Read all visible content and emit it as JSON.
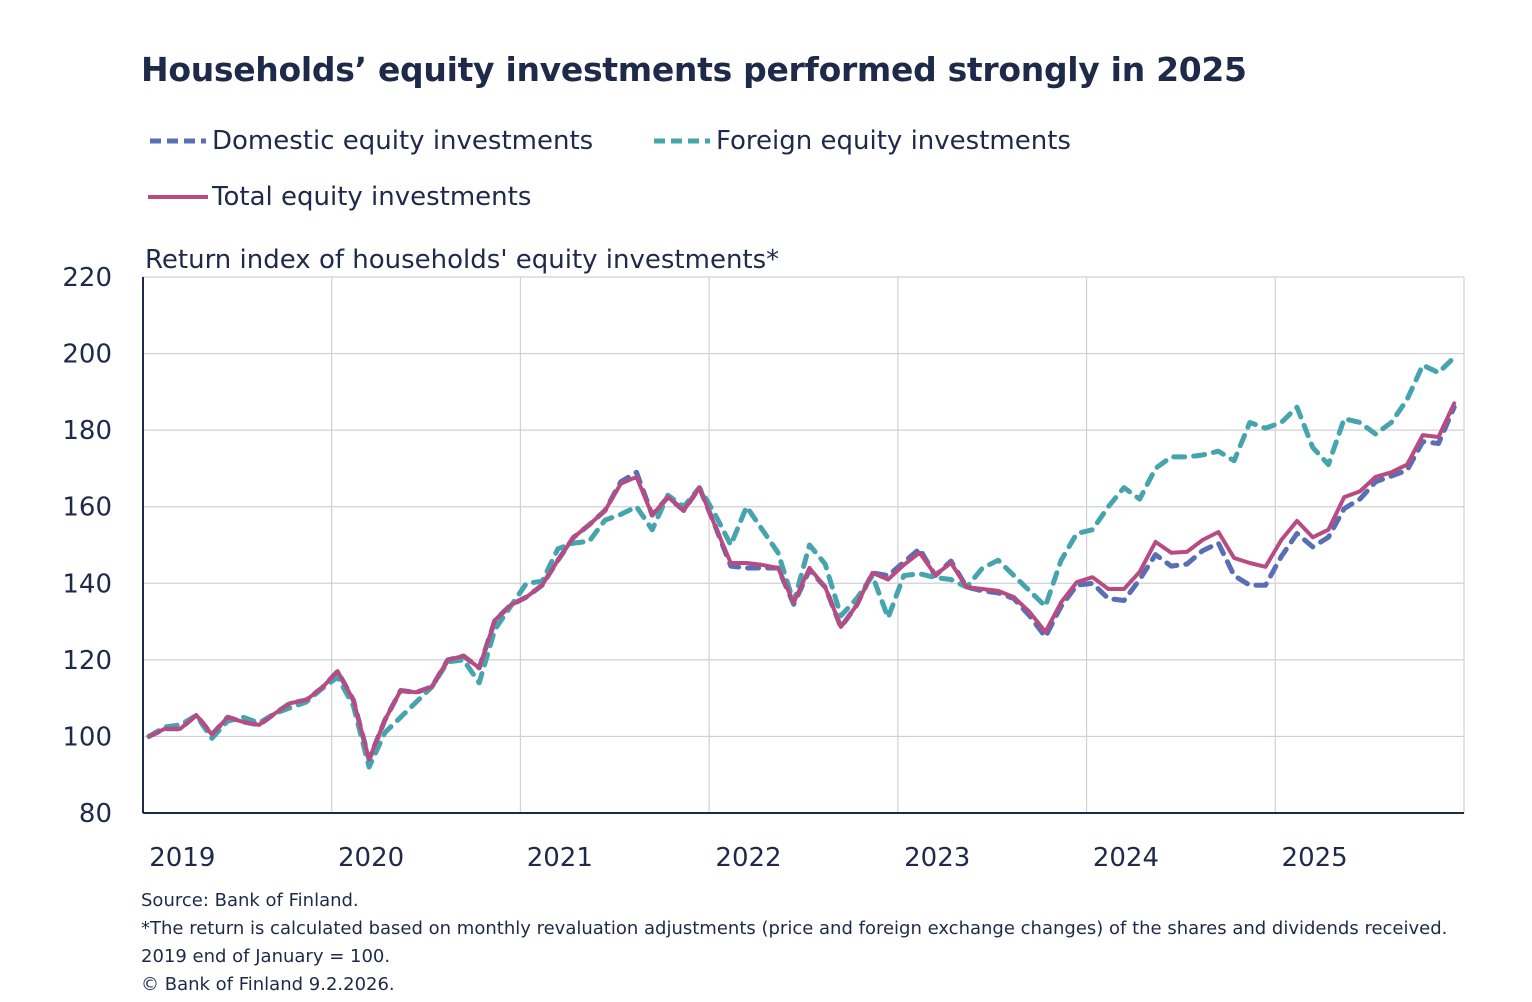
{
  "chart_data": {
    "type": "line",
    "title": "Households’ equity investments performed strongly in 2025",
    "ylabel": "Return index of households'  equity investments*",
    "xlabel": "",
    "ylim": [
      80,
      220
    ],
    "yticks": [
      80,
      100,
      120,
      140,
      160,
      180,
      200,
      220
    ],
    "xtick_labels": [
      "2019",
      "2020",
      "2021",
      "2022",
      "2023",
      "2024",
      "2025"
    ],
    "grid": true,
    "legend_position": "top-left",
    "x": [
      "2019-01",
      "2019-02",
      "2019-03",
      "2019-04",
      "2019-05",
      "2019-06",
      "2019-07",
      "2019-08",
      "2019-09",
      "2019-10",
      "2019-11",
      "2019-12",
      "2020-01",
      "2020-02",
      "2020-03",
      "2020-04",
      "2020-05",
      "2020-06",
      "2020-07",
      "2020-08",
      "2020-09",
      "2020-10",
      "2020-11",
      "2020-12",
      "2021-01",
      "2021-02",
      "2021-03",
      "2021-04",
      "2021-05",
      "2021-06",
      "2021-07",
      "2021-08",
      "2021-09",
      "2021-10",
      "2021-11",
      "2021-12",
      "2022-01",
      "2022-02",
      "2022-03",
      "2022-04",
      "2022-05",
      "2022-06",
      "2022-07",
      "2022-08",
      "2022-09",
      "2022-10",
      "2022-11",
      "2022-12",
      "2023-01",
      "2023-02",
      "2023-03",
      "2023-04",
      "2023-05",
      "2023-06",
      "2023-07",
      "2023-08",
      "2023-09",
      "2023-10",
      "2023-11",
      "2023-12",
      "2024-01",
      "2024-02",
      "2024-03",
      "2024-04",
      "2024-05",
      "2024-06",
      "2024-07",
      "2024-08",
      "2024-09",
      "2024-10",
      "2024-11",
      "2024-12",
      "2025-01",
      "2025-02",
      "2025-03",
      "2025-04",
      "2025-05",
      "2025-06",
      "2025-07",
      "2025-08",
      "2025-09",
      "2025-10",
      "2025-11",
      "2025-12"
    ],
    "series": [
      {
        "name": "Domestic equity investments",
        "color": "#5a6eb5",
        "style": "dashed",
        "values": [
          100,
          102,
          102,
          105.6,
          100.5,
          105,
          103.8,
          103,
          106,
          108.7,
          109.5,
          112.7,
          117,
          109.5,
          94,
          104.3,
          112,
          111.5,
          113,
          120,
          121,
          117.9,
          130.4,
          134.3,
          136.4,
          139.5,
          146,
          152,
          155.3,
          159,
          166.5,
          169,
          157.8,
          162.5,
          159,
          165,
          155,
          144.5,
          144,
          144,
          144,
          134.5,
          143.5,
          139,
          128.5,
          134.3,
          142.7,
          142,
          145.5,
          149,
          142,
          145.8,
          139,
          138,
          137.5,
          136,
          131.5,
          126,
          134,
          139.5,
          140,
          136,
          135.5,
          141,
          147.5,
          144.5,
          145,
          148.5,
          150.5,
          142,
          139.5,
          139.5,
          147,
          153,
          149.5,
          152,
          159.5,
          162,
          166.5,
          168,
          169.5,
          177,
          176.5,
          186
        ]
      },
      {
        "name": "Foreign equity investments",
        "color": "#46a4af",
        "style": "dashed",
        "values": [
          100,
          102.5,
          103,
          105.5,
          99.5,
          104,
          105,
          103.5,
          106,
          107.5,
          109,
          112.5,
          115.5,
          108,
          92,
          101,
          105,
          109,
          113,
          119.5,
          120,
          114,
          128,
          134,
          140,
          140.5,
          149,
          150.5,
          151,
          156.5,
          158,
          160,
          154,
          163,
          160,
          165,
          158,
          150,
          160,
          154,
          148,
          135,
          150,
          145,
          131.5,
          136,
          142,
          131,
          142,
          142.5,
          141.5,
          141,
          139,
          144,
          146,
          142,
          138,
          134,
          146,
          153,
          154,
          160,
          165,
          162,
          170,
          173,
          173,
          173.5,
          174.5,
          172,
          182,
          180.5,
          182,
          186,
          175.5,
          171,
          183,
          182,
          179,
          182,
          188,
          197,
          195,
          199
        ]
      },
      {
        "name": "Total equity investments",
        "color": "#b84c82",
        "style": "solid",
        "values": [
          100,
          102,
          102,
          105.6,
          100.5,
          105,
          103.8,
          103,
          106,
          108.7,
          109.5,
          112.7,
          117,
          109.5,
          94,
          104.3,
          112,
          111.5,
          113,
          120,
          121,
          117.9,
          130.4,
          134.3,
          136.4,
          139.5,
          146,
          152,
          155.3,
          159,
          166,
          167.8,
          157.8,
          162.5,
          159,
          165,
          155,
          145.3,
          145.3,
          144.8,
          144,
          135,
          144,
          139,
          128.6,
          134.3,
          142.7,
          141,
          144.8,
          148,
          142.2,
          145.3,
          139,
          138.5,
          138,
          136.4,
          132.5,
          127.3,
          135,
          140.3,
          141.6,
          138.5,
          138.5,
          143,
          150.8,
          148,
          148.2,
          151.3,
          153.4,
          146.6,
          145.3,
          144.3,
          151.3,
          156.3,
          152,
          154,
          162.5,
          164,
          167.8,
          169,
          171,
          178.7,
          178.2,
          187
        ]
      }
    ]
  },
  "footnotes": {
    "source": "Source: Bank of Finland.",
    "note": "*The return is calculated based on monthly revaluation adjustments (price and foreign exchange changes) of the shares and dividends received.",
    "base": "2019 end of January = 100.",
    "copyright": "© Bank of Finland 9.2.2026."
  }
}
